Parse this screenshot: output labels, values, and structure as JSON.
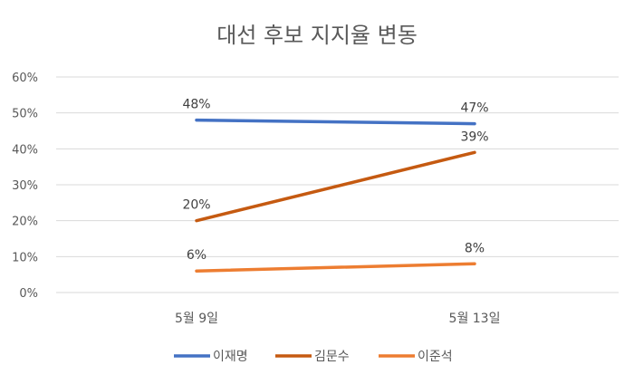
{
  "chart_data": {
    "type": "line",
    "title": "대선 후보 지지율 변동",
    "categories": [
      "5월 9일",
      "5월 13일"
    ],
    "series": [
      {
        "name": "이재명",
        "values": [
          48,
          47
        ],
        "labels": [
          "48%",
          "47%"
        ],
        "color": "#4472C4"
      },
      {
        "name": "김문수",
        "values": [
          20,
          39
        ],
        "labels": [
          "20%",
          "39%"
        ],
        "color": "#C55A11"
      },
      {
        "name": "이준석",
        "values": [
          6,
          8
        ],
        "labels": [
          "6%",
          "8%"
        ],
        "color": "#ED7D31"
      }
    ],
    "ylim": [
      0,
      60
    ],
    "yticks": [
      "0%",
      "10%",
      "20%",
      "30%",
      "40%",
      "50%",
      "60%"
    ],
    "grid": true,
    "legend": "bottom"
  }
}
